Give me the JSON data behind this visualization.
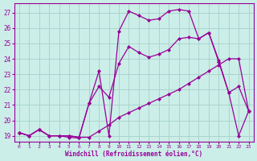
{
  "xlabel": "Windchill (Refroidissement éolien,°C)",
  "background_color": "#cceee8",
  "grid_color": "#aad4ce",
  "line_color": "#990099",
  "marker": "D",
  "x_ticks": [
    0,
    1,
    2,
    3,
    4,
    5,
    6,
    7,
    8,
    9,
    10,
    11,
    12,
    13,
    14,
    15,
    16,
    17,
    18,
    19,
    20,
    21,
    22,
    23
  ],
  "y_ticks": [
    19,
    20,
    21,
    22,
    23,
    24,
    25,
    26,
    27
  ],
  "ylim": [
    18.6,
    27.6
  ],
  "xlim": [
    -0.5,
    23.5
  ],
  "curve1_x": [
    0,
    1,
    2,
    3,
    4,
    5,
    6,
    7,
    8,
    9,
    10,
    11,
    12,
    13,
    14,
    15,
    16,
    17,
    18,
    19,
    20,
    21,
    22,
    23
  ],
  "curve1_y": [
    19.2,
    19.0,
    19.4,
    19.0,
    19.0,
    19.0,
    18.9,
    18.9,
    19.3,
    19.7,
    20.2,
    20.5,
    20.8,
    21.1,
    21.4,
    21.7,
    22.0,
    22.4,
    22.8,
    23.2,
    23.6,
    24.0,
    24.0,
    20.6
  ],
  "curve2_x": [
    0,
    1,
    2,
    3,
    4,
    5,
    6,
    7,
    8,
    9,
    10,
    11,
    12,
    13,
    14,
    15,
    16,
    17,
    18,
    19,
    20,
    21,
    22,
    23
  ],
  "curve2_y": [
    19.2,
    19.0,
    19.4,
    19.0,
    19.0,
    19.0,
    18.9,
    21.1,
    22.2,
    21.5,
    23.7,
    24.8,
    24.4,
    24.1,
    24.3,
    24.6,
    25.3,
    25.4,
    25.3,
    25.7,
    23.9,
    21.8,
    22.2,
    20.6
  ],
  "curve3_x": [
    0,
    1,
    2,
    3,
    4,
    5,
    6,
    7,
    8,
    9,
    10,
    11,
    12,
    13,
    14,
    15,
    16,
    17,
    18,
    19,
    20,
    21,
    22,
    23
  ],
  "curve3_y": [
    19.2,
    19.0,
    19.4,
    19.0,
    19.0,
    18.9,
    18.85,
    21.1,
    23.2,
    19.0,
    25.8,
    27.1,
    26.8,
    26.5,
    26.6,
    27.1,
    27.2,
    27.1,
    25.3,
    25.7,
    23.8,
    21.8,
    19.0,
    20.6
  ]
}
